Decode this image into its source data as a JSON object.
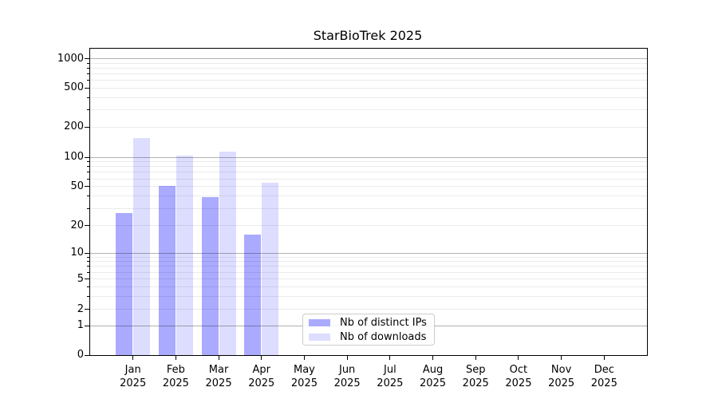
{
  "title": "StarBioTrek 2025",
  "colors": {
    "ips_bar": "#aaaaff",
    "downloads_bar": "#ddddff",
    "grid_major": "#b3b3b3",
    "grid_minor": "#ebebeb",
    "axis": "#000000",
    "legend_border": "#cccccc"
  },
  "legend": {
    "items": [
      {
        "label": "Nb of distinct IPs",
        "color_key": "ips_bar"
      },
      {
        "label": "Nb of downloads",
        "color_key": "downloads_bar"
      }
    ]
  },
  "y_axis": {
    "tick_labels": [
      "0",
      "1",
      "2",
      "5",
      "10",
      "20",
      "50",
      "100",
      "200",
      "500",
      "1000"
    ],
    "tick_values": [
      0,
      1,
      2,
      5,
      10,
      20,
      50,
      100,
      200,
      500,
      1000
    ]
  },
  "x_axis": {
    "tick_labels": [
      "Jan 2025",
      "Feb 2025",
      "Mar 2025",
      "Apr 2025",
      "May 2025",
      "Jun 2025",
      "Jul 2025",
      "Aug 2025",
      "Sep 2025",
      "Oct 2025",
      "Nov 2025",
      "Dec 2025"
    ]
  },
  "chart_data": {
    "type": "bar",
    "title": "StarBioTrek 2025",
    "categories": [
      "Jan 2025",
      "Feb 2025",
      "Mar 2025",
      "Apr 2025",
      "May 2025",
      "Jun 2025",
      "Jul 2025",
      "Aug 2025",
      "Sep 2025",
      "Oct 2025",
      "Nov 2025",
      "Dec 2025"
    ],
    "series": [
      {
        "name": "Nb of distinct IPs",
        "color": "#aaaaff",
        "values": [
          27,
          51,
          39,
          16,
          0,
          0,
          0,
          0,
          0,
          0,
          0,
          0
        ]
      },
      {
        "name": "Nb of downloads",
        "color": "#ddddff",
        "values": [
          155,
          104,
          113,
          55,
          0,
          0,
          0,
          0,
          0,
          0,
          0,
          0
        ]
      }
    ],
    "xlabel": "",
    "ylabel": "",
    "yscale": "log",
    "ylim": [
      0,
      1000
    ],
    "y_ticks": [
      0,
      1,
      2,
      5,
      10,
      20,
      50,
      100,
      200,
      500,
      1000
    ],
    "grid": "horizontal, major and minor",
    "legend_position": "bottom-center-inside"
  }
}
